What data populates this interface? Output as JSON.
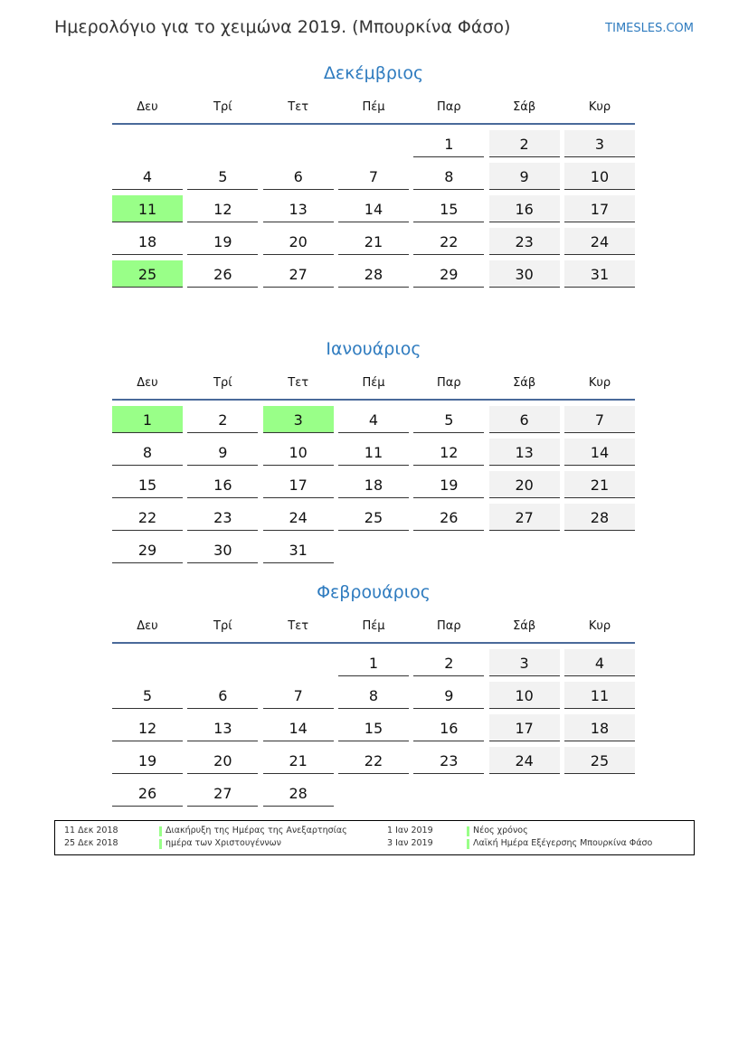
{
  "header": {
    "title": "Ημερολόγιο για το χειμώνα 2019. (Μπουρκίνα Φάσο)",
    "site": "TIMESLES.COM"
  },
  "weekdays": [
    "Δευ",
    "Τρί",
    "Τετ",
    "Πέμ",
    "Παρ",
    "Σάβ",
    "Κυρ"
  ],
  "colors": {
    "holiday": "#99ff88",
    "weekend": "#f2f2f2",
    "accent": "#2e7bbf"
  },
  "months": [
    {
      "name": "Δεκέμβριος",
      "first_weekday": 5,
      "days": 31,
      "holidays": [
        11,
        25
      ]
    },
    {
      "name": "Ιανουάριος",
      "first_weekday": 1,
      "days": 31,
      "holidays": [
        1,
        3
      ]
    },
    {
      "name": "Φεβρουάριος",
      "first_weekday": 4,
      "days": 28,
      "holidays": []
    }
  ],
  "legend": [
    {
      "date": "11 Δεκ 2018",
      "name": "Διακήρυξη της Ημέρας της Ανεξαρτησίας"
    },
    {
      "date": "25 Δεκ 2018",
      "name": "ημέρα των Χριστουγέννων"
    },
    {
      "date": "1 Ιαν 2019",
      "name": "Νέος χρόνος"
    },
    {
      "date": "3 Ιαν 2019",
      "name": "Λαϊκή Ημέρα Εξέγερσης Μπουρκίνα Φάσο"
    }
  ]
}
